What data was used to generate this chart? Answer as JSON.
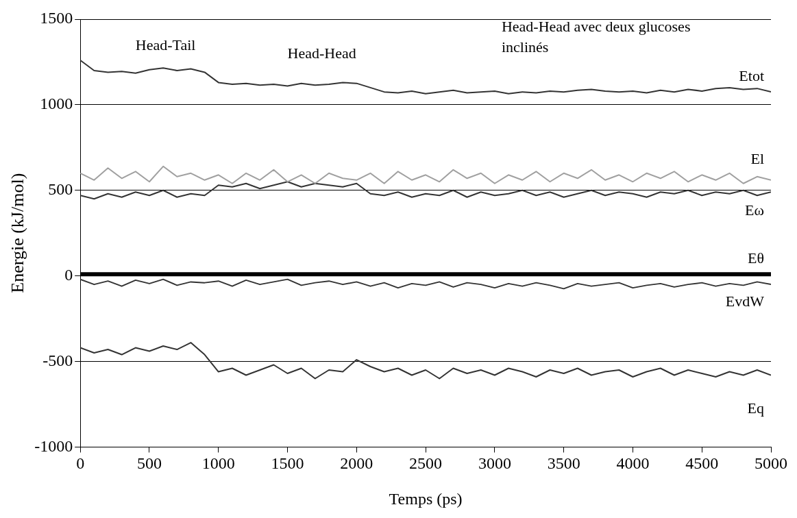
{
  "chart_data": {
    "type": "line",
    "xlabel": "Temps (ps)",
    "ylabel": "Energie (kJ/mol)",
    "x": [
      0,
      100,
      200,
      300,
      400,
      500,
      600,
      700,
      800,
      900,
      1000,
      1100,
      1200,
      1300,
      1400,
      1500,
      1600,
      1700,
      1800,
      1900,
      2000,
      2100,
      2200,
      2300,
      2400,
      2500,
      2600,
      2700,
      2800,
      2900,
      3000,
      3100,
      3200,
      3300,
      3400,
      3500,
      3600,
      3700,
      3800,
      3900,
      4000,
      4100,
      4200,
      4300,
      4400,
      4500,
      4600,
      4700,
      4800,
      4900,
      5000
    ],
    "xlim": [
      0,
      5000
    ],
    "xticks": [
      0,
      500,
      1000,
      1500,
      2000,
      2500,
      3000,
      3500,
      4000,
      4500,
      5000
    ],
    "ylim": [
      -1000,
      1500
    ],
    "yticks": [
      -1000,
      -500,
      0,
      500,
      1000,
      1500
    ],
    "grid": "y",
    "marker": "none",
    "line_style": "solid",
    "annotations": [
      "Head-Tail",
      "Head-Head",
      "Head-Head avec deux glucoses inclinés"
    ],
    "series": [
      {
        "name": "Etot",
        "color": "#333333",
        "values": [
          1260,
          1200,
          1190,
          1195,
          1185,
          1205,
          1215,
          1200,
          1210,
          1190,
          1130,
          1120,
          1125,
          1115,
          1120,
          1110,
          1125,
          1115,
          1120,
          1130,
          1125,
          1100,
          1075,
          1070,
          1080,
          1065,
          1075,
          1085,
          1070,
          1075,
          1080,
          1065,
          1075,
          1070,
          1080,
          1075,
          1085,
          1090,
          1080,
          1075,
          1080,
          1070,
          1085,
          1075,
          1090,
          1080,
          1095,
          1100,
          1090,
          1095,
          1075
        ]
      },
      {
        "name": "El",
        "color": "#a0a0a0",
        "values": [
          600,
          560,
          630,
          570,
          610,
          550,
          640,
          580,
          600,
          560,
          590,
          540,
          600,
          560,
          620,
          550,
          590,
          540,
          600,
          570,
          560,
          600,
          540,
          610,
          560,
          590,
          550,
          620,
          570,
          600,
          540,
          590,
          560,
          610,
          550,
          600,
          570,
          620,
          560,
          590,
          550,
          600,
          570,
          610,
          550,
          590,
          560,
          600,
          540,
          580,
          560
        ]
      },
      {
        "name": "Eω",
        "color": "#333333",
        "values": [
          470,
          450,
          480,
          460,
          490,
          470,
          500,
          460,
          480,
          470,
          530,
          520,
          540,
          510,
          530,
          550,
          520,
          540,
          530,
          520,
          540,
          480,
          470,
          490,
          460,
          480,
          470,
          500,
          460,
          490,
          470,
          480,
          500,
          470,
          490,
          460,
          480,
          500,
          470,
          490,
          480,
          460,
          490,
          480,
          500,
          470,
          490,
          480,
          500,
          470,
          490
        ]
      },
      {
        "name": "Eθ",
        "color": "#000000",
        "values": [
          10,
          10,
          10,
          10,
          10,
          10,
          10,
          10,
          10,
          10,
          10,
          10,
          10,
          10,
          10,
          10,
          10,
          10,
          10,
          10,
          10,
          10,
          10,
          10,
          10,
          10,
          10,
          10,
          10,
          10,
          10,
          10,
          10,
          10,
          10,
          10,
          10,
          10,
          10,
          10,
          10,
          10,
          10,
          10,
          10,
          10,
          10,
          10,
          10,
          10,
          10
        ]
      },
      {
        "name": "EvdW",
        "color": "#333333",
        "values": [
          -20,
          -50,
          -30,
          -60,
          -25,
          -45,
          -20,
          -55,
          -35,
          -40,
          -30,
          -60,
          -25,
          -50,
          -35,
          -20,
          -55,
          -40,
          -30,
          -50,
          -35,
          -60,
          -40,
          -70,
          -45,
          -55,
          -35,
          -65,
          -40,
          -50,
          -70,
          -45,
          -60,
          -40,
          -55,
          -75,
          -45,
          -60,
          -50,
          -40,
          -70,
          -55,
          -45,
          -65,
          -50,
          -40,
          -60,
          -45,
          -55,
          -35,
          -50
        ]
      },
      {
        "name": "Eq",
        "color": "#333333",
        "values": [
          -420,
          -450,
          -430,
          -460,
          -420,
          -440,
          -410,
          -430,
          -390,
          -460,
          -560,
          -540,
          -580,
          -550,
          -520,
          -570,
          -540,
          -600,
          -550,
          -560,
          -490,
          -530,
          -560,
          -540,
          -580,
          -550,
          -600,
          -540,
          -570,
          -550,
          -580,
          -540,
          -560,
          -590,
          -550,
          -570,
          -540,
          -580,
          -560,
          -550,
          -590,
          -560,
          -540,
          -580,
          -550,
          -570,
          -590,
          -560,
          -580,
          -550,
          -580
        ]
      }
    ]
  }
}
